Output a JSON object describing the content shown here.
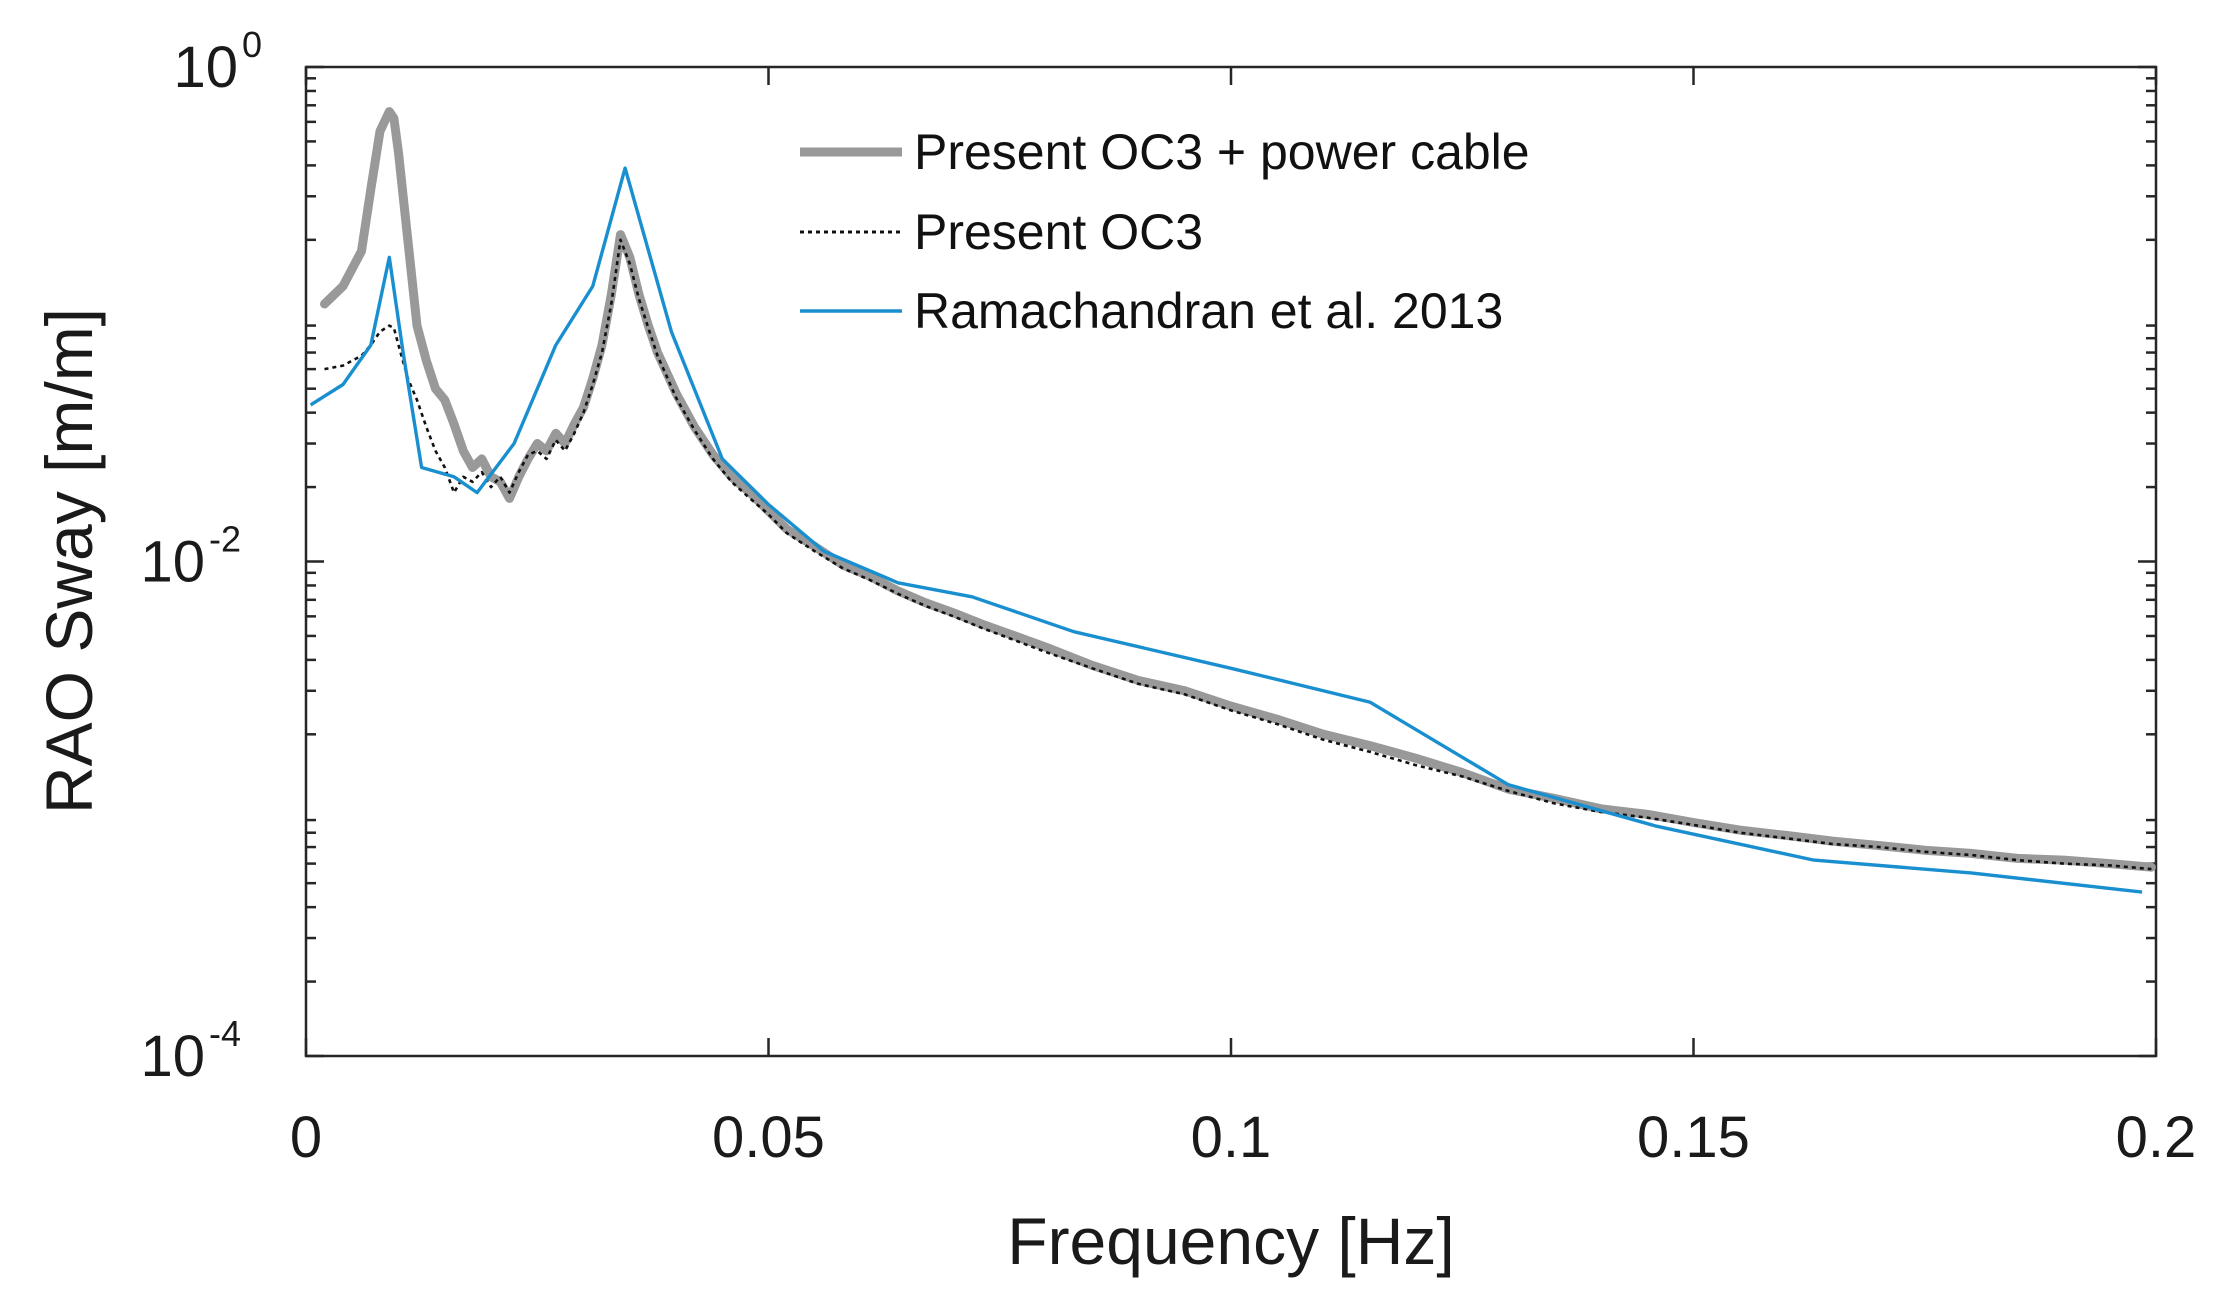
{
  "chart_data": {
    "type": "line",
    "title": "",
    "xlabel": "Frequency [Hz]",
    "ylabel": "RAO Sway [m/m]",
    "xlim": [
      0,
      0.2
    ],
    "ylim": [
      0.0001,
      1
    ],
    "yscale": "log",
    "grid": false,
    "legend_position": "top-right",
    "x_ticks": [
      {
        "value": 0,
        "label": "0"
      },
      {
        "value": 0.05,
        "label": "0.05"
      },
      {
        "value": 0.1,
        "label": "0.1"
      },
      {
        "value": 0.15,
        "label": "0.15"
      },
      {
        "value": 0.2,
        "label": "0.2"
      }
    ],
    "y_ticks": [
      {
        "value": 1,
        "base": "10",
        "exponent": "0"
      },
      {
        "value": 0.01,
        "base": "10",
        "exponent": "-2"
      },
      {
        "value": 0.0001,
        "base": "10",
        "exponent": "-4"
      }
    ],
    "series": [
      {
        "name": "Present OC3 + power cable",
        "color": "#999999",
        "style": "thick",
        "points": [
          [
            0.002,
            0.11
          ],
          [
            0.004,
            0.13
          ],
          [
            0.006,
            0.18
          ],
          [
            0.007,
            0.32
          ],
          [
            0.008,
            0.55
          ],
          [
            0.009,
            0.66
          ],
          [
            0.0095,
            0.62
          ],
          [
            0.01,
            0.45
          ],
          [
            0.011,
            0.2
          ],
          [
            0.012,
            0.09
          ],
          [
            0.013,
            0.065
          ],
          [
            0.014,
            0.05
          ],
          [
            0.015,
            0.045
          ],
          [
            0.016,
            0.036
          ],
          [
            0.017,
            0.028
          ],
          [
            0.018,
            0.024
          ],
          [
            0.019,
            0.026
          ],
          [
            0.02,
            0.022
          ],
          [
            0.021,
            0.021
          ],
          [
            0.022,
            0.018
          ],
          [
            0.023,
            0.022
          ],
          [
            0.024,
            0.026
          ],
          [
            0.025,
            0.03
          ],
          [
            0.026,
            0.028
          ],
          [
            0.027,
            0.033
          ],
          [
            0.028,
            0.03
          ],
          [
            0.029,
            0.036
          ],
          [
            0.03,
            0.042
          ],
          [
            0.031,
            0.055
          ],
          [
            0.032,
            0.075
          ],
          [
            0.033,
            0.12
          ],
          [
            0.034,
            0.21
          ],
          [
            0.035,
            0.17
          ],
          [
            0.036,
            0.12
          ],
          [
            0.037,
            0.09
          ],
          [
            0.038,
            0.07
          ],
          [
            0.039,
            0.058
          ],
          [
            0.04,
            0.048
          ],
          [
            0.042,
            0.035
          ],
          [
            0.044,
            0.027
          ],
          [
            0.046,
            0.022
          ],
          [
            0.048,
            0.019
          ],
          [
            0.05,
            0.016
          ],
          [
            0.052,
            0.0135
          ],
          [
            0.055,
            0.0115
          ],
          [
            0.058,
            0.0097
          ],
          [
            0.061,
            0.0087
          ],
          [
            0.064,
            0.0076
          ],
          [
            0.067,
            0.0068
          ],
          [
            0.07,
            0.0062
          ],
          [
            0.073,
            0.0056
          ],
          [
            0.076,
            0.0051
          ],
          [
            0.08,
            0.0045
          ],
          [
            0.085,
            0.0038
          ],
          [
            0.09,
            0.0033
          ],
          [
            0.095,
            0.003
          ],
          [
            0.1,
            0.0026
          ],
          [
            0.105,
            0.0023
          ],
          [
            0.11,
            0.002
          ],
          [
            0.115,
            0.0018
          ],
          [
            0.12,
            0.0016
          ],
          [
            0.125,
            0.0014
          ],
          [
            0.13,
            0.0012
          ],
          [
            0.135,
            0.0011
          ],
          [
            0.14,
            0.001
          ],
          [
            0.145,
            0.00095
          ],
          [
            0.15,
            0.00088
          ],
          [
            0.155,
            0.00082
          ],
          [
            0.16,
            0.00078
          ],
          [
            0.165,
            0.00074
          ],
          [
            0.17,
            0.00071
          ],
          [
            0.175,
            0.00068
          ],
          [
            0.18,
            0.00066
          ],
          [
            0.185,
            0.00063
          ],
          [
            0.19,
            0.00062
          ],
          [
            0.195,
            0.0006
          ],
          [
            0.1995,
            0.00058
          ]
        ]
      },
      {
        "name": "Present OC3",
        "color": "#111111",
        "style": "dotted",
        "points": [
          [
            0.002,
            0.06
          ],
          [
            0.004,
            0.062
          ],
          [
            0.006,
            0.068
          ],
          [
            0.007,
            0.075
          ],
          [
            0.008,
            0.085
          ],
          [
            0.009,
            0.09
          ],
          [
            0.0095,
            0.088
          ],
          [
            0.01,
            0.075
          ],
          [
            0.011,
            0.055
          ],
          [
            0.012,
            0.045
          ],
          [
            0.013,
            0.035
          ],
          [
            0.014,
            0.028
          ],
          [
            0.015,
            0.024
          ],
          [
            0.016,
            0.019
          ],
          [
            0.017,
            0.022
          ],
          [
            0.018,
            0.021
          ],
          [
            0.019,
            0.023
          ],
          [
            0.02,
            0.02
          ],
          [
            0.021,
            0.022
          ],
          [
            0.022,
            0.019
          ],
          [
            0.023,
            0.023
          ],
          [
            0.024,
            0.027
          ],
          [
            0.025,
            0.028
          ],
          [
            0.026,
            0.026
          ],
          [
            0.027,
            0.031
          ],
          [
            0.028,
            0.028
          ],
          [
            0.029,
            0.033
          ],
          [
            0.03,
            0.04
          ],
          [
            0.031,
            0.052
          ],
          [
            0.032,
            0.07
          ],
          [
            0.033,
            0.11
          ],
          [
            0.034,
            0.2
          ],
          [
            0.035,
            0.16
          ],
          [
            0.036,
            0.115
          ],
          [
            0.037,
            0.088
          ],
          [
            0.038,
            0.068
          ],
          [
            0.039,
            0.056
          ],
          [
            0.04,
            0.046
          ],
          [
            0.042,
            0.034
          ],
          [
            0.044,
            0.026
          ],
          [
            0.046,
            0.021
          ],
          [
            0.048,
            0.018
          ],
          [
            0.05,
            0.0155
          ],
          [
            0.052,
            0.013
          ],
          [
            0.055,
            0.011
          ],
          [
            0.058,
            0.0094
          ],
          [
            0.061,
            0.0084
          ],
          [
            0.064,
            0.0074
          ],
          [
            0.067,
            0.0066
          ],
          [
            0.07,
            0.006
          ],
          [
            0.073,
            0.0054
          ],
          [
            0.076,
            0.0049
          ],
          [
            0.08,
            0.0043
          ],
          [
            0.085,
            0.0037
          ],
          [
            0.09,
            0.0032
          ],
          [
            0.095,
            0.0029
          ],
          [
            0.1,
            0.0025
          ],
          [
            0.105,
            0.0022
          ],
          [
            0.11,
            0.0019
          ],
          [
            0.115,
            0.0017
          ],
          [
            0.12,
            0.0015
          ],
          [
            0.125,
            0.00135
          ],
          [
            0.13,
            0.00118
          ],
          [
            0.135,
            0.00105
          ],
          [
            0.14,
            0.00097
          ],
          [
            0.145,
            0.00092
          ],
          [
            0.15,
            0.00086
          ],
          [
            0.155,
            0.0008
          ],
          [
            0.16,
            0.00076
          ],
          [
            0.165,
            0.00072
          ],
          [
            0.17,
            0.0007
          ],
          [
            0.175,
            0.00067
          ],
          [
            0.18,
            0.00065
          ],
          [
            0.185,
            0.00062
          ],
          [
            0.19,
            0.0006
          ],
          [
            0.195,
            0.00059
          ],
          [
            0.1995,
            0.00057
          ]
        ]
      },
      {
        "name": "Ramachandran et al. 2013",
        "color": "#1a8fd0",
        "style": "solid",
        "points": [
          [
            0.0005,
            0.043
          ],
          [
            0.004,
            0.052
          ],
          [
            0.007,
            0.075
          ],
          [
            0.009,
            0.17
          ],
          [
            0.0105,
            0.07
          ],
          [
            0.0125,
            0.024
          ],
          [
            0.016,
            0.022
          ],
          [
            0.0185,
            0.019
          ],
          [
            0.0225,
            0.03
          ],
          [
            0.027,
            0.075
          ],
          [
            0.031,
            0.13
          ],
          [
            0.0345,
            0.39
          ],
          [
            0.0395,
            0.085
          ],
          [
            0.045,
            0.026
          ],
          [
            0.05,
            0.017
          ],
          [
            0.056,
            0.011
          ],
          [
            0.064,
            0.0082
          ],
          [
            0.072,
            0.0072
          ],
          [
            0.083,
            0.0052
          ],
          [
            0.1,
            0.0037
          ],
          [
            0.115,
            0.0027
          ],
          [
            0.13,
            0.00125
          ],
          [
            0.146,
            0.00085
          ],
          [
            0.163,
            0.00062
          ],
          [
            0.18,
            0.00055
          ],
          [
            0.1985,
            0.00046
          ]
        ]
      }
    ]
  }
}
